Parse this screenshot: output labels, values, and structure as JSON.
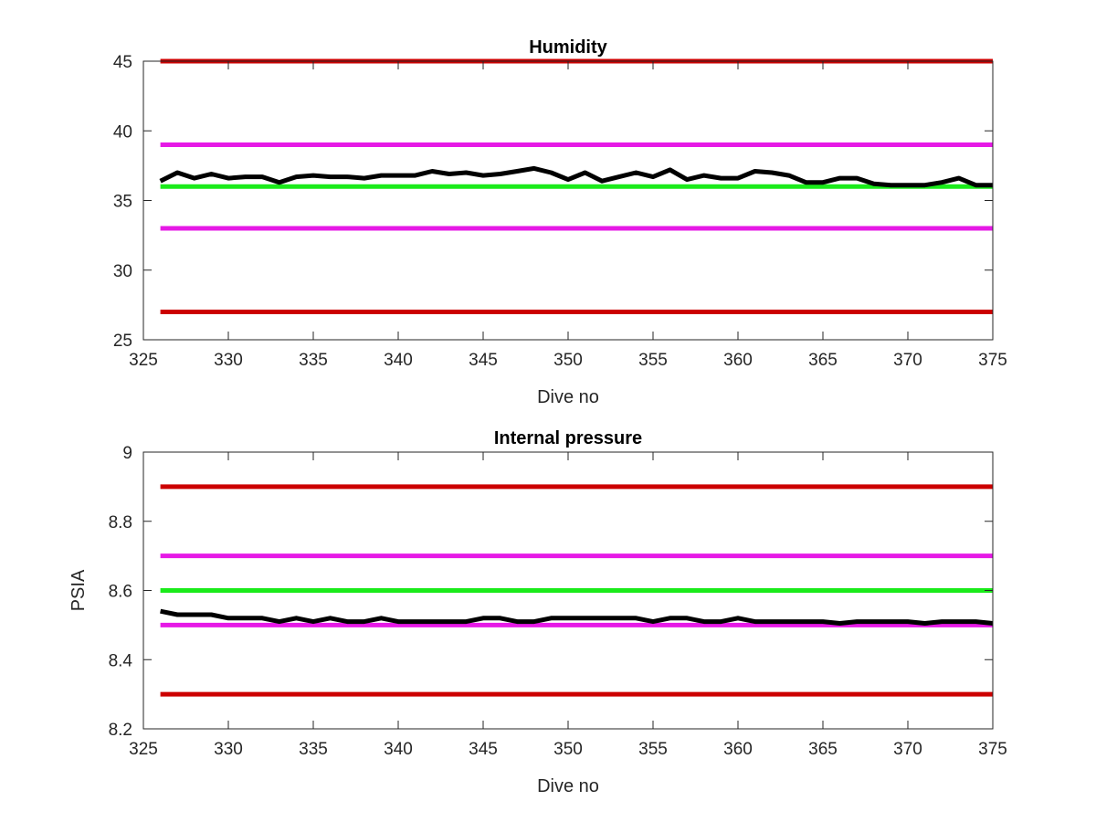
{
  "chart_data": [
    {
      "type": "line",
      "title": "Humidity",
      "xlabel": "Dive no",
      "ylabel": "",
      "xlim": [
        325,
        375
      ],
      "ylim": [
        25,
        45
      ],
      "xticks": [
        325,
        330,
        335,
        340,
        345,
        350,
        355,
        360,
        365,
        370,
        375
      ],
      "yticks": [
        25,
        30,
        35,
        40,
        45
      ],
      "grid": false,
      "series": [
        {
          "role": "upper-limit",
          "color": "#cc0000",
          "x": [
            326,
            375
          ],
          "y": [
            45,
            45
          ]
        },
        {
          "role": "upper-warning",
          "color": "#e619e6",
          "x": [
            326,
            375
          ],
          "y": [
            39,
            39
          ]
        },
        {
          "role": "nominal",
          "color": "#1aeb1a",
          "x": [
            326,
            375
          ],
          "y": [
            36,
            36
          ]
        },
        {
          "role": "lower-warning",
          "color": "#e619e6",
          "x": [
            326,
            375
          ],
          "y": [
            33,
            33
          ]
        },
        {
          "role": "lower-limit",
          "color": "#cc0000",
          "x": [
            326,
            375
          ],
          "y": [
            27,
            27
          ]
        },
        {
          "role": "measured",
          "color": "#000000",
          "x": [
            326,
            327,
            328,
            329,
            330,
            331,
            332,
            333,
            334,
            335,
            336,
            337,
            338,
            339,
            340,
            341,
            342,
            343,
            344,
            345,
            346,
            347,
            348,
            349,
            350,
            351,
            352,
            353,
            354,
            355,
            356,
            357,
            358,
            359,
            360,
            361,
            362,
            363,
            364,
            365,
            366,
            367,
            368,
            369,
            370,
            371,
            372,
            373,
            374,
            375
          ],
          "y": [
            36.4,
            37.0,
            36.6,
            36.9,
            36.6,
            36.7,
            36.7,
            36.3,
            36.7,
            36.8,
            36.7,
            36.7,
            36.6,
            36.8,
            36.8,
            36.8,
            37.1,
            36.9,
            37.0,
            36.8,
            36.9,
            37.1,
            37.3,
            37.0,
            36.5,
            37.0,
            36.4,
            36.7,
            37.0,
            36.7,
            37.2,
            36.5,
            36.8,
            36.6,
            36.6,
            37.1,
            37.0,
            36.8,
            36.3,
            36.3,
            36.6,
            36.6,
            36.2,
            36.1,
            36.1,
            36.1,
            36.3,
            36.6,
            36.1,
            36.1
          ]
        }
      ]
    },
    {
      "type": "line",
      "title": "Internal pressure",
      "xlabel": "Dive no",
      "ylabel": "PSIA",
      "xlim": [
        325,
        375
      ],
      "ylim": [
        8.2,
        9
      ],
      "xticks": [
        325,
        330,
        335,
        340,
        345,
        350,
        355,
        360,
        365,
        370,
        375
      ],
      "yticks": [
        8.2,
        8.4,
        8.6,
        8.8,
        9
      ],
      "grid": false,
      "series": [
        {
          "role": "upper-limit",
          "color": "#cc0000",
          "x": [
            326,
            375
          ],
          "y": [
            8.9,
            8.9
          ]
        },
        {
          "role": "upper-warning",
          "color": "#e619e6",
          "x": [
            326,
            375
          ],
          "y": [
            8.7,
            8.7
          ]
        },
        {
          "role": "nominal",
          "color": "#1aeb1a",
          "x": [
            326,
            375
          ],
          "y": [
            8.6,
            8.6
          ]
        },
        {
          "role": "lower-warning",
          "color": "#e619e6",
          "x": [
            326,
            375
          ],
          "y": [
            8.5,
            8.5
          ]
        },
        {
          "role": "lower-limit",
          "color": "#cc0000",
          "x": [
            326,
            375
          ],
          "y": [
            8.3,
            8.3
          ]
        },
        {
          "role": "measured",
          "color": "#000000",
          "x": [
            326,
            327,
            328,
            329,
            330,
            331,
            332,
            333,
            334,
            335,
            336,
            337,
            338,
            339,
            340,
            341,
            342,
            343,
            344,
            345,
            346,
            347,
            348,
            349,
            350,
            351,
            352,
            353,
            354,
            355,
            356,
            357,
            358,
            359,
            360,
            361,
            362,
            363,
            364,
            365,
            366,
            367,
            368,
            369,
            370,
            371,
            372,
            373,
            374,
            375
          ],
          "y": [
            8.54,
            8.53,
            8.53,
            8.53,
            8.52,
            8.52,
            8.52,
            8.51,
            8.52,
            8.51,
            8.52,
            8.51,
            8.51,
            8.52,
            8.51,
            8.51,
            8.51,
            8.51,
            8.51,
            8.52,
            8.52,
            8.51,
            8.51,
            8.52,
            8.52,
            8.52,
            8.52,
            8.52,
            8.52,
            8.51,
            8.52,
            8.52,
            8.51,
            8.51,
            8.52,
            8.51,
            8.51,
            8.51,
            8.51,
            8.51,
            8.505,
            8.51,
            8.51,
            8.51,
            8.51,
            8.505,
            8.51,
            8.51,
            8.51,
            8.505
          ]
        }
      ]
    }
  ]
}
